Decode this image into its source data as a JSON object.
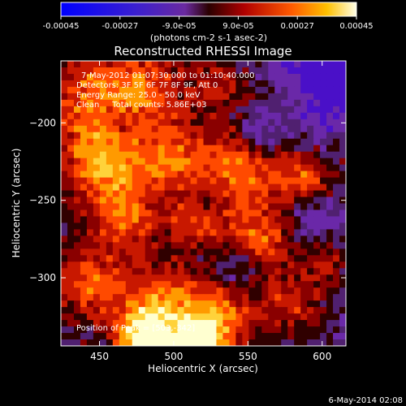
{
  "chart_data": {
    "type": "heatmap",
    "title": "Reconstructed RHESSI Image",
    "colorbar": {
      "range": [
        -0.00045,
        0.00045
      ],
      "tick_labels": [
        "-0.00045",
        "-0.00027",
        "-9.0e-05",
        "9.0e-05",
        "0.00027",
        "0.00045"
      ],
      "tick_values": [
        -0.00045,
        -0.00027,
        -9e-05,
        9e-05,
        0.00027,
        0.00045
      ],
      "label": "(photons cm-2 s-1 asec-2)"
    },
    "xlabel": "Heliocentric X (arcsec)",
    "ylabel": "Heliocentric Y (arcsec)",
    "xlim": [
      424,
      616
    ],
    "ylim": [
      -344,
      -160
    ],
    "x_ticks": [
      450,
      500,
      550,
      600
    ],
    "y_ticks": [
      -200,
      -250,
      -300
    ],
    "annotations": [
      "7-May-2012 01:07:30.000 to 01:10:40.000",
      "Detectors: 3F 5F 6F 7F 8F 9F, Att 0",
      "Energy Range: 25.0 - 50.0 keV",
      "Clean     Total counts: 5.86E+03"
    ],
    "peak_label": "Position of Peak = [503,-342]",
    "footer": "6-May-2014 02:08",
    "grid": false
  }
}
